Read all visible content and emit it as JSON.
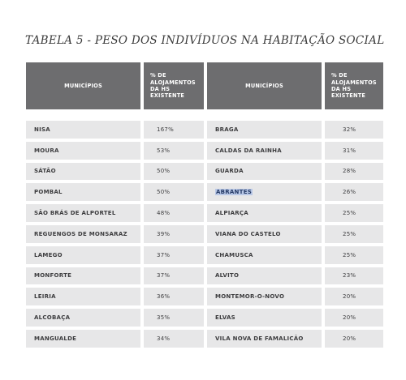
{
  "title": "TABELA 5 - PESO DOS INDIVÍDUOS NA HABITAÇÃO SOCIAL",
  "headers": {
    "municipios_left": "MUNICÍPIOS",
    "pct_left": "% DE ALOJAMENTOS DA HS EXISTENTE",
    "municipios_right": "MUNICÍPIOS",
    "pct_right": "% DE ALOJAMENTOS DA HS EXISTENTE"
  },
  "rows": [
    {
      "m1": "NISA",
      "p1": "167%",
      "m2": "BRAGA",
      "p2": "32%"
    },
    {
      "m1": "MOURA",
      "p1": "53%",
      "m2": "CALDAS DA RAINHA",
      "p2": "31%"
    },
    {
      "m1": "SÁTÃO",
      "p1": "50%",
      "m2": "GUARDA",
      "p2": "28%"
    },
    {
      "m1": "POMBAL",
      "p1": "50%",
      "m2": "ABRANTES",
      "p2": "26%",
      "highlight": true
    },
    {
      "m1": "SÃO BRÁS DE ALPORTEL",
      "p1": "48%",
      "m2": "ALPIARÇA",
      "p2": "25%"
    },
    {
      "m1": "REGUENGOS DE MONSARAZ",
      "p1": "39%",
      "m2": "VIANA DO CASTELO",
      "p2": "25%"
    },
    {
      "m1": "LAMEGO",
      "p1": "37%",
      "m2": "CHAMUSCA",
      "p2": "25%"
    },
    {
      "m1": "MONFORTE",
      "p1": "37%",
      "m2": "ALVITO",
      "p2": "23%"
    },
    {
      "m1": "LEIRIA",
      "p1": "36%",
      "m2": "MONTEMOR-O-NOVO",
      "p2": "20%"
    },
    {
      "m1": "ALCOBAÇA",
      "p1": "35%",
      "m2": "ELVAS",
      "p2": "20%"
    },
    {
      "m1": "MANGUALDE",
      "p1": "34%",
      "m2": "VILA NOVA DE FAMALICÃO",
      "p2": "20%"
    }
  ],
  "colors": {
    "header_bg": "#6d6d6f",
    "cell_bg": "#e7e7e8",
    "selection": "#b9c8e6"
  }
}
